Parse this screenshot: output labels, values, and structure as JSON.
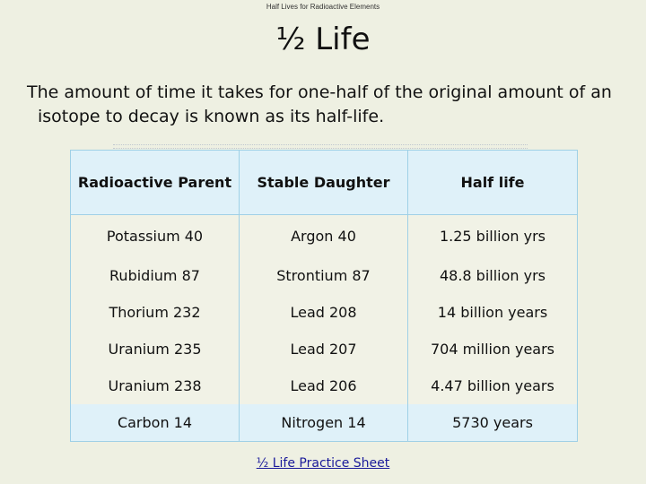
{
  "slide": {
    "header": "Half Lives for Radioactive Elements",
    "title": "½ Life",
    "intro": "The amount of time it takes for one-half of the original amount of an isotope to decay is known as its half-life.",
    "link_text": "½ Life Practice  Sheet"
  },
  "table": {
    "headers": [
      "Radioactive Parent",
      "Stable Daughter",
      "Half life"
    ],
    "rows": [
      [
        "Potassium 40",
        "Argon 40",
        "1.25 billion yrs"
      ],
      [
        "Rubidium 87",
        "Strontium 87",
        "48.8 billion yrs"
      ],
      [
        "Thorium 232",
        "Lead 208",
        "14 billion years"
      ],
      [
        "Uranium 235",
        "Lead 207",
        "704 million years"
      ],
      [
        "Uranium 238",
        "Lead 206",
        "4.47 billion years"
      ],
      [
        "Carbon 14",
        "Nitrogen 14",
        "5730 years"
      ]
    ]
  },
  "colors": {
    "background": "#eef0e2",
    "table_header": "#dff1f9",
    "table_border": "#9fd0e6",
    "link": "#1a1a9a"
  }
}
